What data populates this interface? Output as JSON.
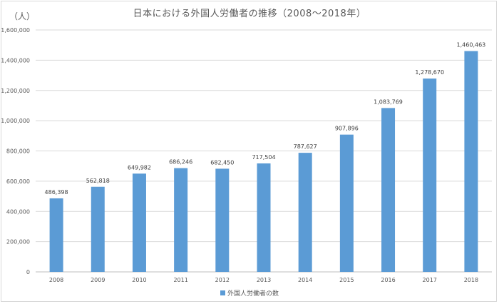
{
  "chart_data": {
    "type": "bar",
    "title": "日本における外国人労働者の推移（2008〜2018年）",
    "unit_label": "（人）",
    "categories": [
      "2008",
      "2009",
      "2010",
      "2011",
      "2012",
      "2013",
      "2014",
      "2015",
      "2016",
      "2017",
      "2018"
    ],
    "series": [
      {
        "name": "外国人労働者の数",
        "values": [
          486398,
          562818,
          649982,
          686246,
          682450,
          717504,
          787627,
          907896,
          1083769,
          1278670,
          1460463
        ],
        "value_labels": [
          "486,398",
          "562,818",
          "649,982",
          "686,246",
          "682,450",
          "717,504",
          "787,627",
          "907,896",
          "1,083,769",
          "1,278,670",
          "1,460,463"
        ]
      }
    ],
    "ylim": [
      0,
      1600000
    ],
    "yticks": [
      0,
      200000,
      400000,
      600000,
      800000,
      1000000,
      1200000,
      1400000,
      1600000
    ],
    "ytick_labels": [
      "0",
      "200,000",
      "400,000",
      "600,000",
      "800,000",
      "1,000,000",
      "1,200,000",
      "1,400,000",
      "1,600,000"
    ],
    "grid": true,
    "legend_position": "bottom",
    "bar_color": "#5b9bd5"
  }
}
